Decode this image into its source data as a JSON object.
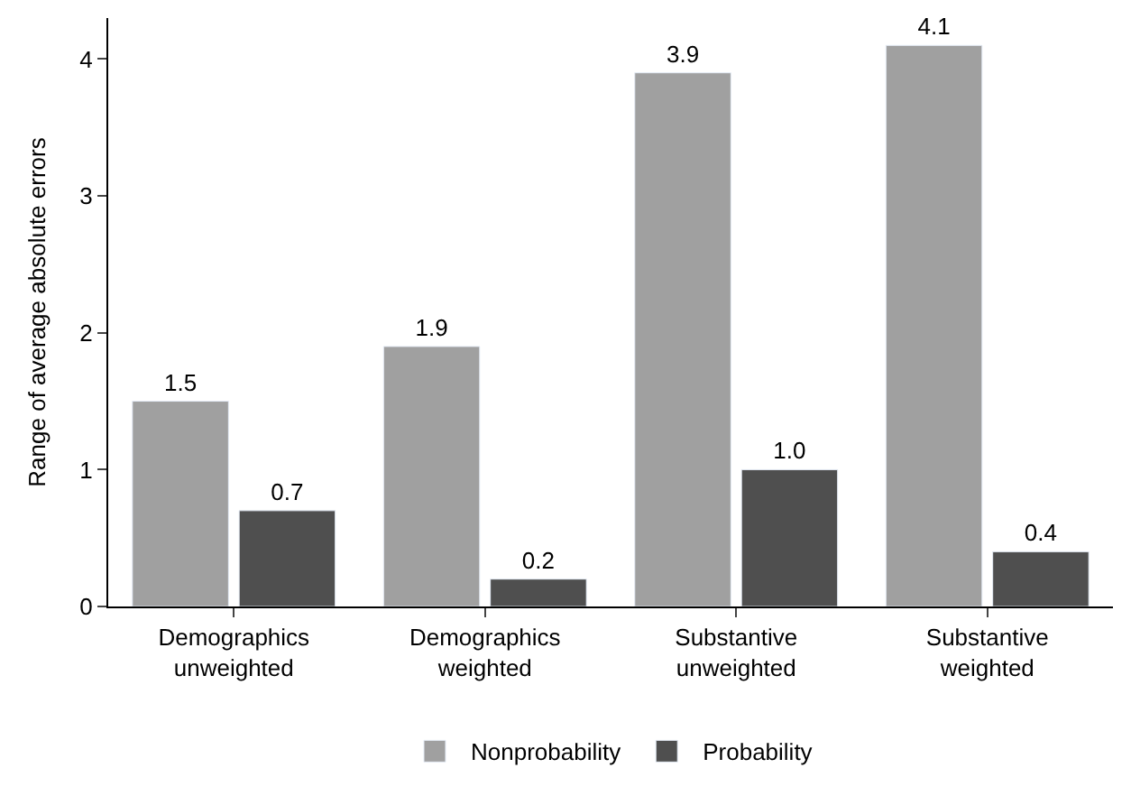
{
  "chart_data": {
    "type": "bar",
    "ylabel": "Range of average absolute errors",
    "categories": [
      "Demographics\nunweighted",
      "Demographics\nweighted",
      "Substantive\nunweighted",
      "Substantive\nweighted"
    ],
    "series": [
      {
        "name": "Nonprobability",
        "color": "#a0a0a0",
        "values": [
          1.5,
          1.9,
          3.9,
          4.1
        ],
        "value_labels": [
          "1.5",
          "1.9",
          "3.9",
          "4.1"
        ]
      },
      {
        "name": "Probability",
        "color": "#4f4f4f",
        "values": [
          0.7,
          0.2,
          1.0,
          0.4
        ],
        "value_labels": [
          "0.7",
          "0.2",
          "1.0",
          "0.4"
        ]
      }
    ],
    "ylim": [
      0,
      4.3
    ],
    "yticks": [
      0,
      1,
      2,
      3,
      4
    ],
    "legend": "bottom"
  }
}
